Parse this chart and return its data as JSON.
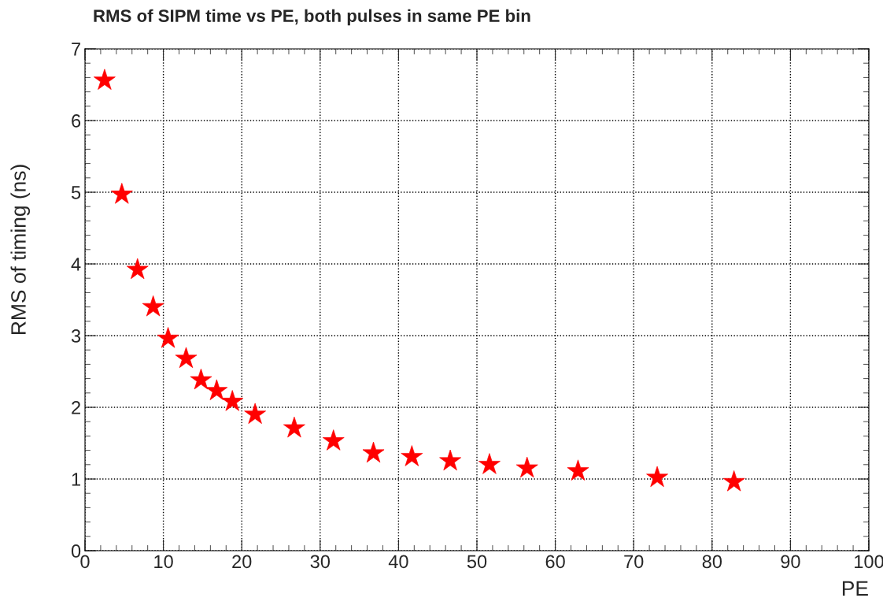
{
  "chart_data": {
    "type": "scatter",
    "title": "RMS of SIPM time vs PE, both pulses in same PE bin",
    "xlabel": "PE",
    "ylabel": "RMS of timing (ns)",
    "x": [
      2.5,
      4.7,
      6.7,
      8.7,
      10.6,
      12.9,
      14.8,
      16.8,
      18.8,
      21.7,
      26.7,
      31.7,
      36.8,
      41.7,
      46.6,
      51.6,
      56.4,
      62.9,
      73.0,
      82.8
    ],
    "series": [
      {
        "color": "#ff0000",
        "values": [
          6.56,
          4.97,
          3.92,
          3.4,
          2.96,
          2.68,
          2.38,
          2.23,
          2.08,
          1.9,
          1.71,
          1.53,
          1.36,
          1.31,
          1.25,
          1.2,
          1.15,
          1.11,
          1.02,
          0.96
        ]
      }
    ],
    "xlim": [
      0,
      100
    ],
    "xticks": [
      0,
      10,
      20,
      30,
      40,
      50,
      60,
      70,
      80,
      90,
      100
    ],
    "ylim": [
      0,
      7
    ],
    "yticks": [
      0,
      1,
      2,
      3,
      4,
      5,
      6,
      7
    ],
    "grid": true,
    "marker": "star"
  }
}
